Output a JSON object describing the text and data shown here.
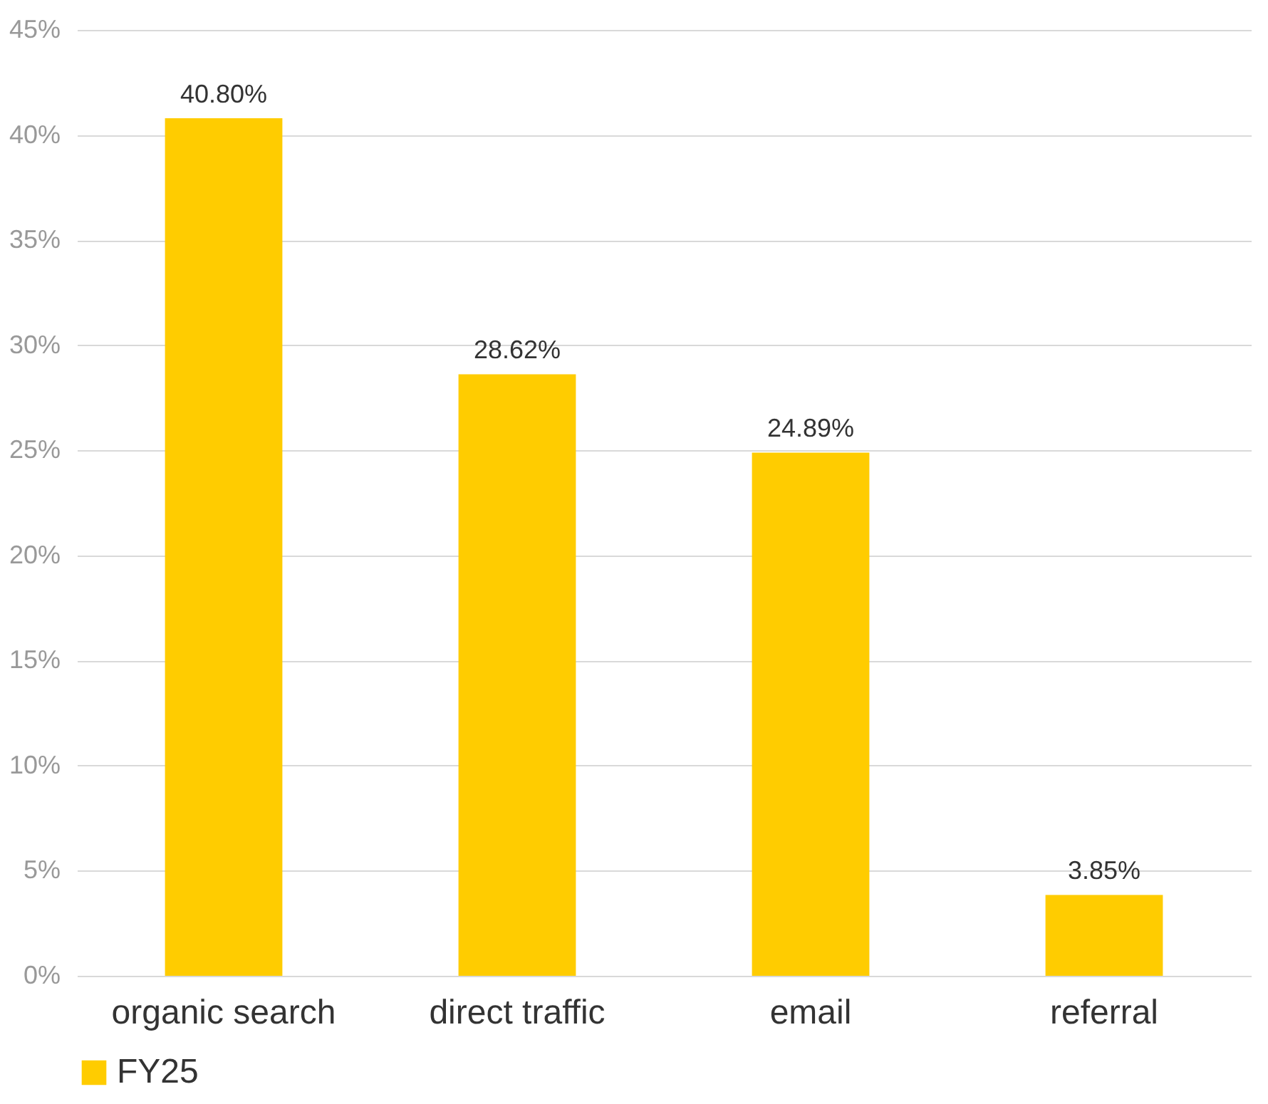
{
  "chart_data": {
    "type": "bar",
    "categories": [
      "organic search",
      "direct traffic",
      "email",
      "referral"
    ],
    "series": [
      {
        "name": "FY25",
        "color": "#ffcc00",
        "values": [
          40.8,
          28.62,
          24.89,
          3.85
        ],
        "value_labels": [
          "40.80%",
          "28.62%",
          "24.89%",
          "3.85%"
        ]
      }
    ],
    "ylim": [
      0,
      45
    ],
    "yticks": [
      {
        "value": 0,
        "label": "0%"
      },
      {
        "value": 5,
        "label": "5%"
      },
      {
        "value": 10,
        "label": "10%"
      },
      {
        "value": 15,
        "label": "15%"
      },
      {
        "value": 20,
        "label": "20%"
      },
      {
        "value": 25,
        "label": "25%"
      },
      {
        "value": 30,
        "label": "30%"
      },
      {
        "value": 35,
        "label": "35%"
      },
      {
        "value": 40,
        "label": "40%"
      },
      {
        "value": 45,
        "label": "45%"
      }
    ],
    "grid": "y",
    "legend": "bottom"
  }
}
